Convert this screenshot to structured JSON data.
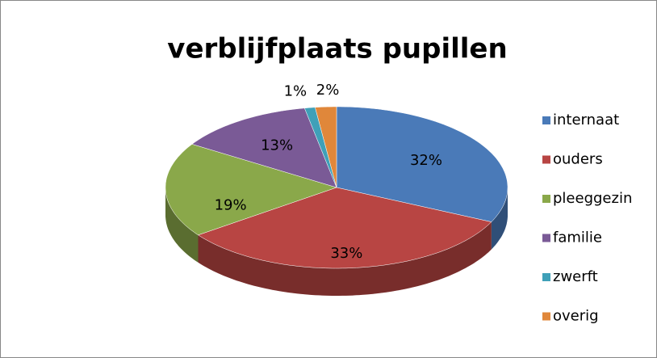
{
  "chart_data": {
    "type": "pie",
    "title": "verblijfplaats pupillen",
    "categories": [
      "internaat",
      "ouders",
      "pleeggezin",
      "familie",
      "zwerft",
      "overig"
    ],
    "values": [
      32,
      33,
      19,
      13,
      1,
      2
    ],
    "value_labels": [
      "32%",
      "33%",
      "19%",
      "13%",
      "1%",
      "2%"
    ],
    "colors": [
      "#4a7ab8",
      "#b84543",
      "#8aa84a",
      "#7a5a96",
      "#3fa0b8",
      "#e0873a"
    ],
    "legend": "right"
  }
}
